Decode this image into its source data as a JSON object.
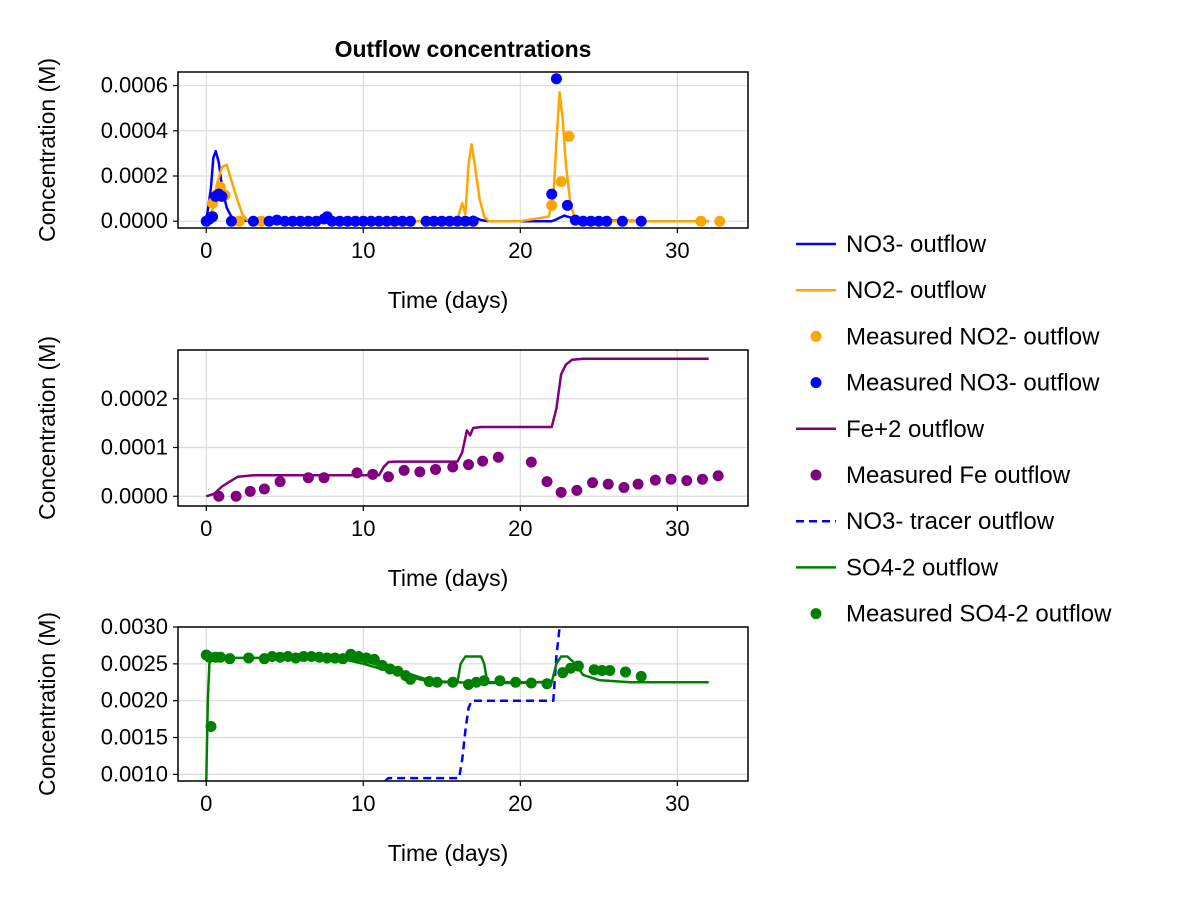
{
  "chart_data": [
    {
      "type": "line",
      "title": "Outflow concentrations",
      "xlabel": "Time (days)",
      "ylabel": "Concentration (M)",
      "xlim": [
        -1.8,
        34.5
      ],
      "ylim": [
        -3e-05,
        0.00066
      ],
      "xticks": [
        0,
        10,
        20,
        30
      ],
      "yticks": [
        0.0,
        0.0002,
        0.0004,
        0.0006
      ],
      "ytick_labels": [
        "0.0000",
        "0.0002",
        "0.0004",
        "0.0006"
      ],
      "grid": true,
      "series": [
        {
          "name": "NO3- outflow",
          "kind": "line",
          "color": "#0000ff",
          "x": [
            0,
            0.3,
            0.45,
            0.6,
            0.8,
            1.0,
            1.3,
            1.6,
            2.0,
            2.5,
            3,
            5,
            10,
            14,
            16,
            16.5,
            17,
            17.5,
            18,
            20,
            22,
            22.2,
            22.5,
            22.8,
            23.0,
            23.5,
            24,
            25,
            28,
            32
          ],
          "y": [
            0,
            0.00015,
            0.00028,
            0.00031,
            0.00026,
            0.00015,
            6e-05,
            2e-05,
            5e-06,
            2e-06,
            0,
            0,
            0,
            0,
            0,
            5e-06,
            2e-05,
            5e-06,
            0,
            0,
            0,
            5e-06,
            1.5e-05,
            2.5e-05,
            2e-05,
            1.2e-05,
            7e-06,
            3e-06,
            0,
            0
          ]
        },
        {
          "name": "NO2- outflow",
          "kind": "line",
          "color": "#ffa500",
          "x": [
            0,
            0.4,
            0.7,
            1.0,
            1.3,
            1.6,
            2.0,
            2.3,
            2.6,
            3,
            5,
            10,
            15,
            16.0,
            16.3,
            16.5,
            16.7,
            16.9,
            17.1,
            17.4,
            17.7,
            18,
            20,
            21.8,
            22.1,
            22.3,
            22.5,
            22.7,
            22.9,
            23.2,
            23.5,
            24,
            25,
            28,
            32
          ],
          "y": [
            0,
            5e-05,
            0.00017,
            0.00024,
            0.00025,
            0.00018,
            9e-05,
            3e-05,
            5e-06,
            0,
            0,
            0,
            0,
            1e-05,
            8e-05,
            3e-05,
            0.00025,
            0.00034,
            0.00025,
            0.0001,
            2e-05,
            0,
            0,
            2e-05,
            0.0001,
            0.00035,
            0.00057,
            0.00045,
            0.00025,
            7e-05,
            1e-05,
            0,
            0,
            0,
            0
          ]
        },
        {
          "name": "Measured NO2- outflow",
          "kind": "scatter",
          "color": "#ffa500",
          "x": [
            0.4,
            0.7,
            0.9,
            1.2,
            2.1,
            3.5,
            15.0,
            22.0,
            22.6,
            23.1,
            31.5,
            32.7
          ],
          "y": [
            8e-05,
            0.00012,
            0.00015,
            0.000115,
            0.0,
            0.0,
            0.0,
            7e-05,
            0.000175,
            0.000375,
            0.0,
            0.0
          ]
        },
        {
          "name": "Measured NO3- outflow",
          "kind": "scatter",
          "color": "#0000ff",
          "x": [
            0.0,
            0.2,
            0.4,
            0.6,
            0.8,
            1.0,
            1.6,
            3.0,
            4.0,
            4.5,
            5.0,
            5.5,
            6.0,
            6.5,
            7.0,
            7.5,
            7.7,
            8.0,
            8.5,
            9.0,
            9.5,
            10.0,
            10.5,
            11.0,
            11.5,
            12.0,
            12.5,
            13.0,
            14.0,
            14.5,
            15.0,
            15.5,
            16.0,
            16.5,
            17.0,
            22.0,
            22.3,
            23.0,
            23.5,
            24.0,
            24.5,
            25.0,
            25.5,
            26.5,
            27.7
          ],
          "y": [
            0.0,
            1e-05,
            2e-05,
            0.00011,
            0.00012,
            0.00011,
            0.0,
            0.0,
            0.0,
            5e-06,
            0.0,
            0.0,
            0.0,
            0.0,
            0.0,
            1e-05,
            2e-05,
            0.0,
            0.0,
            0.0,
            0.0,
            0.0,
            0.0,
            0.0,
            0.0,
            0.0,
            0.0,
            0.0,
            0.0,
            0.0,
            0.0,
            0.0,
            0.0,
            0.0,
            0.0,
            0.00012,
            0.00063,
            7e-05,
            5e-06,
            0.0,
            0.0,
            0.0,
            0.0,
            0.0,
            0.0
          ]
        }
      ]
    },
    {
      "type": "line",
      "title": "",
      "xlabel": "Time (days)",
      "ylabel": "Concentration (M)",
      "xlim": [
        -1.8,
        34.5
      ],
      "ylim": [
        -2e-05,
        0.0003
      ],
      "xticks": [
        0,
        10,
        20,
        30
      ],
      "yticks": [
        0.0,
        0.0001,
        0.0002
      ],
      "ytick_labels": [
        "0.0000",
        "0.0001",
        "0.0002"
      ],
      "grid": true,
      "series": [
        {
          "name": "Fe+2 outflow",
          "kind": "line",
          "color": "#800080",
          "x": [
            0,
            0.5,
            1.0,
            1.5,
            2.0,
            3.0,
            10,
            11.0,
            11.3,
            11.6,
            12,
            14,
            16.0,
            16.3,
            16.6,
            16.8,
            17.0,
            17.5,
            20,
            22.0,
            22.3,
            22.6,
            22.9,
            23.3,
            24,
            28,
            32
          ],
          "y": [
            0,
            5e-06,
            2e-05,
            3e-05,
            4e-05,
            4.3e-05,
            4.3e-05,
            4.3e-05,
            6e-05,
            7e-05,
            7.1e-05,
            7.1e-05,
            7.1e-05,
            9e-05,
            0.000135,
            0.000125,
            0.00014,
            0.000142,
            0.000142,
            0.000142,
            0.00018,
            0.00025,
            0.00027,
            0.00028,
            0.000282,
            0.000282,
            0.000282
          ]
        },
        {
          "name": "Measured Fe outflow",
          "kind": "scatter",
          "color": "#800080",
          "x": [
            0.8,
            1.9,
            2.8,
            3.7,
            4.7,
            6.5,
            7.5,
            9.6,
            10.6,
            11.6,
            12.6,
            13.6,
            14.6,
            15.7,
            16.7,
            17.6,
            18.6,
            20.7,
            21.7,
            22.6,
            23.6,
            24.6,
            25.6,
            26.6,
            27.5,
            28.6,
            29.6,
            30.6,
            31.6,
            32.6
          ],
          "y": [
            0.0,
            0.0,
            1e-05,
            1.5e-05,
            3e-05,
            3.8e-05,
            3.8e-05,
            4.8e-05,
            4.5e-05,
            4e-05,
            5.3e-05,
            5e-05,
            5.5e-05,
            6e-05,
            6.5e-05,
            7.2e-05,
            8e-05,
            7e-05,
            3e-05,
            8e-06,
            1.2e-05,
            2.8e-05,
            2.5e-05,
            1.8e-05,
            2.5e-05,
            3.3e-05,
            3.5e-05,
            3.2e-05,
            3.5e-05,
            4.2e-05
          ]
        }
      ]
    },
    {
      "type": "line",
      "title": "",
      "xlabel": "Time (days)",
      "ylabel": "Concentration (M)",
      "xlim": [
        -1.8,
        34.5
      ],
      "ylim": [
        0.00091,
        0.003
      ],
      "xticks": [
        0,
        10,
        20,
        30
      ],
      "yticks": [
        0.001,
        0.0015,
        0.002,
        0.0025,
        0.003
      ],
      "ytick_labels": [
        "0.0010",
        "0.0015",
        "0.0020",
        "0.0025",
        "0.0030"
      ],
      "grid": true,
      "series": [
        {
          "name": "NO3- tracer outflow",
          "kind": "dashed",
          "color": "#0000ff",
          "x": [
            11.4,
            11.6,
            16.1,
            16.3,
            16.5,
            16.7,
            16.9,
            22.1,
            22.3,
            22.5
          ],
          "y": [
            0.00091,
            0.00095,
            0.00095,
            0.0012,
            0.0016,
            0.0019,
            0.002,
            0.002,
            0.0026,
            0.003
          ]
        },
        {
          "name": "SO4-2 outflow",
          "kind": "line",
          "color": "#008000",
          "x": [
            0,
            0.1,
            0.2,
            0.35,
            1.0,
            3,
            6,
            8,
            9,
            10,
            11,
            12,
            13,
            14,
            15,
            16.0,
            16.2,
            16.5,
            17.0,
            17.5,
            17.7,
            17.9,
            20,
            22.0,
            22.3,
            22.6,
            23.0,
            23.5,
            24,
            25,
            27,
            30,
            32
          ],
          "y": [
            0.00091,
            0.002,
            0.0025,
            0.00258,
            0.00258,
            0.00258,
            0.00258,
            0.00257,
            0.00255,
            0.0025,
            0.00244,
            0.00238,
            0.00232,
            0.00227,
            0.00225,
            0.00225,
            0.0025,
            0.0026,
            0.0026,
            0.0026,
            0.0025,
            0.00225,
            0.00225,
            0.00225,
            0.0025,
            0.0026,
            0.0026,
            0.0025,
            0.00235,
            0.00228,
            0.00225,
            0.00225,
            0.00225
          ]
        },
        {
          "name": "SO4-2 outflow",
          "kind": "line",
          "color": "#008000",
          "x": [
            8,
            9,
            10,
            11,
            12,
            13,
            14,
            15,
            16,
            17,
            18,
            19,
            20,
            21,
            22
          ],
          "y": [
            0.00257,
            0.00256,
            0.00254,
            0.00248,
            0.00242,
            0.00236,
            0.00229,
            0.00226,
            0.00225,
            0.00224,
            0.00224,
            0.00224,
            0.00224,
            0.00225,
            0.00226
          ]
        },
        {
          "name": "Measured SO4-2 outflow",
          "kind": "scatter",
          "color": "#008000",
          "x": [
            0.0,
            0.2,
            0.3,
            0.6,
            0.9,
            1.5,
            2.7,
            3.7,
            4.2,
            4.7,
            5.2,
            5.7,
            6.2,
            6.7,
            7.2,
            7.7,
            8.2,
            8.7,
            9.2,
            9.7,
            10.2,
            10.7,
            11.2,
            11.7,
            12.2,
            12.7,
            13.0,
            14.2,
            14.7,
            15.7,
            16.7,
            17.2,
            17.7,
            18.7,
            19.7,
            20.7,
            21.7,
            22.7,
            23.2,
            23.7,
            24.7,
            25.2,
            25.7,
            26.7,
            27.7
          ],
          "y": [
            0.00262,
            0.00259,
            0.00165,
            0.00259,
            0.00259,
            0.00257,
            0.00258,
            0.00257,
            0.0026,
            0.00259,
            0.0026,
            0.00258,
            0.0026,
            0.0026,
            0.00259,
            0.00258,
            0.00258,
            0.00257,
            0.00263,
            0.0026,
            0.00258,
            0.00256,
            0.00248,
            0.00243,
            0.0024,
            0.00234,
            0.00229,
            0.00226,
            0.00225,
            0.00225,
            0.00222,
            0.00225,
            0.00227,
            0.00227,
            0.00225,
            0.00224,
            0.00223,
            0.00238,
            0.00244,
            0.00247,
            0.00242,
            0.00241,
            0.00241,
            0.00239,
            0.00233
          ]
        }
      ]
    }
  ],
  "legend": {
    "placement": "right",
    "entries": [
      {
        "label": "NO3- outflow",
        "kind": "line",
        "color": "#0000ff"
      },
      {
        "label": "NO2- outflow",
        "kind": "line",
        "color": "#ffa500"
      },
      {
        "label": "Measured NO2- outflow",
        "kind": "scatter",
        "color": "#ffa500"
      },
      {
        "label": "Measured NO3- outflow",
        "kind": "scatter",
        "color": "#0000ff"
      },
      {
        "label": "Fe+2 outflow",
        "kind": "line",
        "color": "#800080"
      },
      {
        "label": "Measured Fe outflow",
        "kind": "scatter",
        "color": "#800080"
      },
      {
        "label": "NO3- tracer outflow",
        "kind": "dashed",
        "color": "#0000ff"
      },
      {
        "label": "SO4-2 outflow",
        "kind": "line",
        "color": "#008000"
      },
      {
        "label": "Measured SO4-2 outflow",
        "kind": "scatter",
        "color": "#008000"
      }
    ]
  }
}
